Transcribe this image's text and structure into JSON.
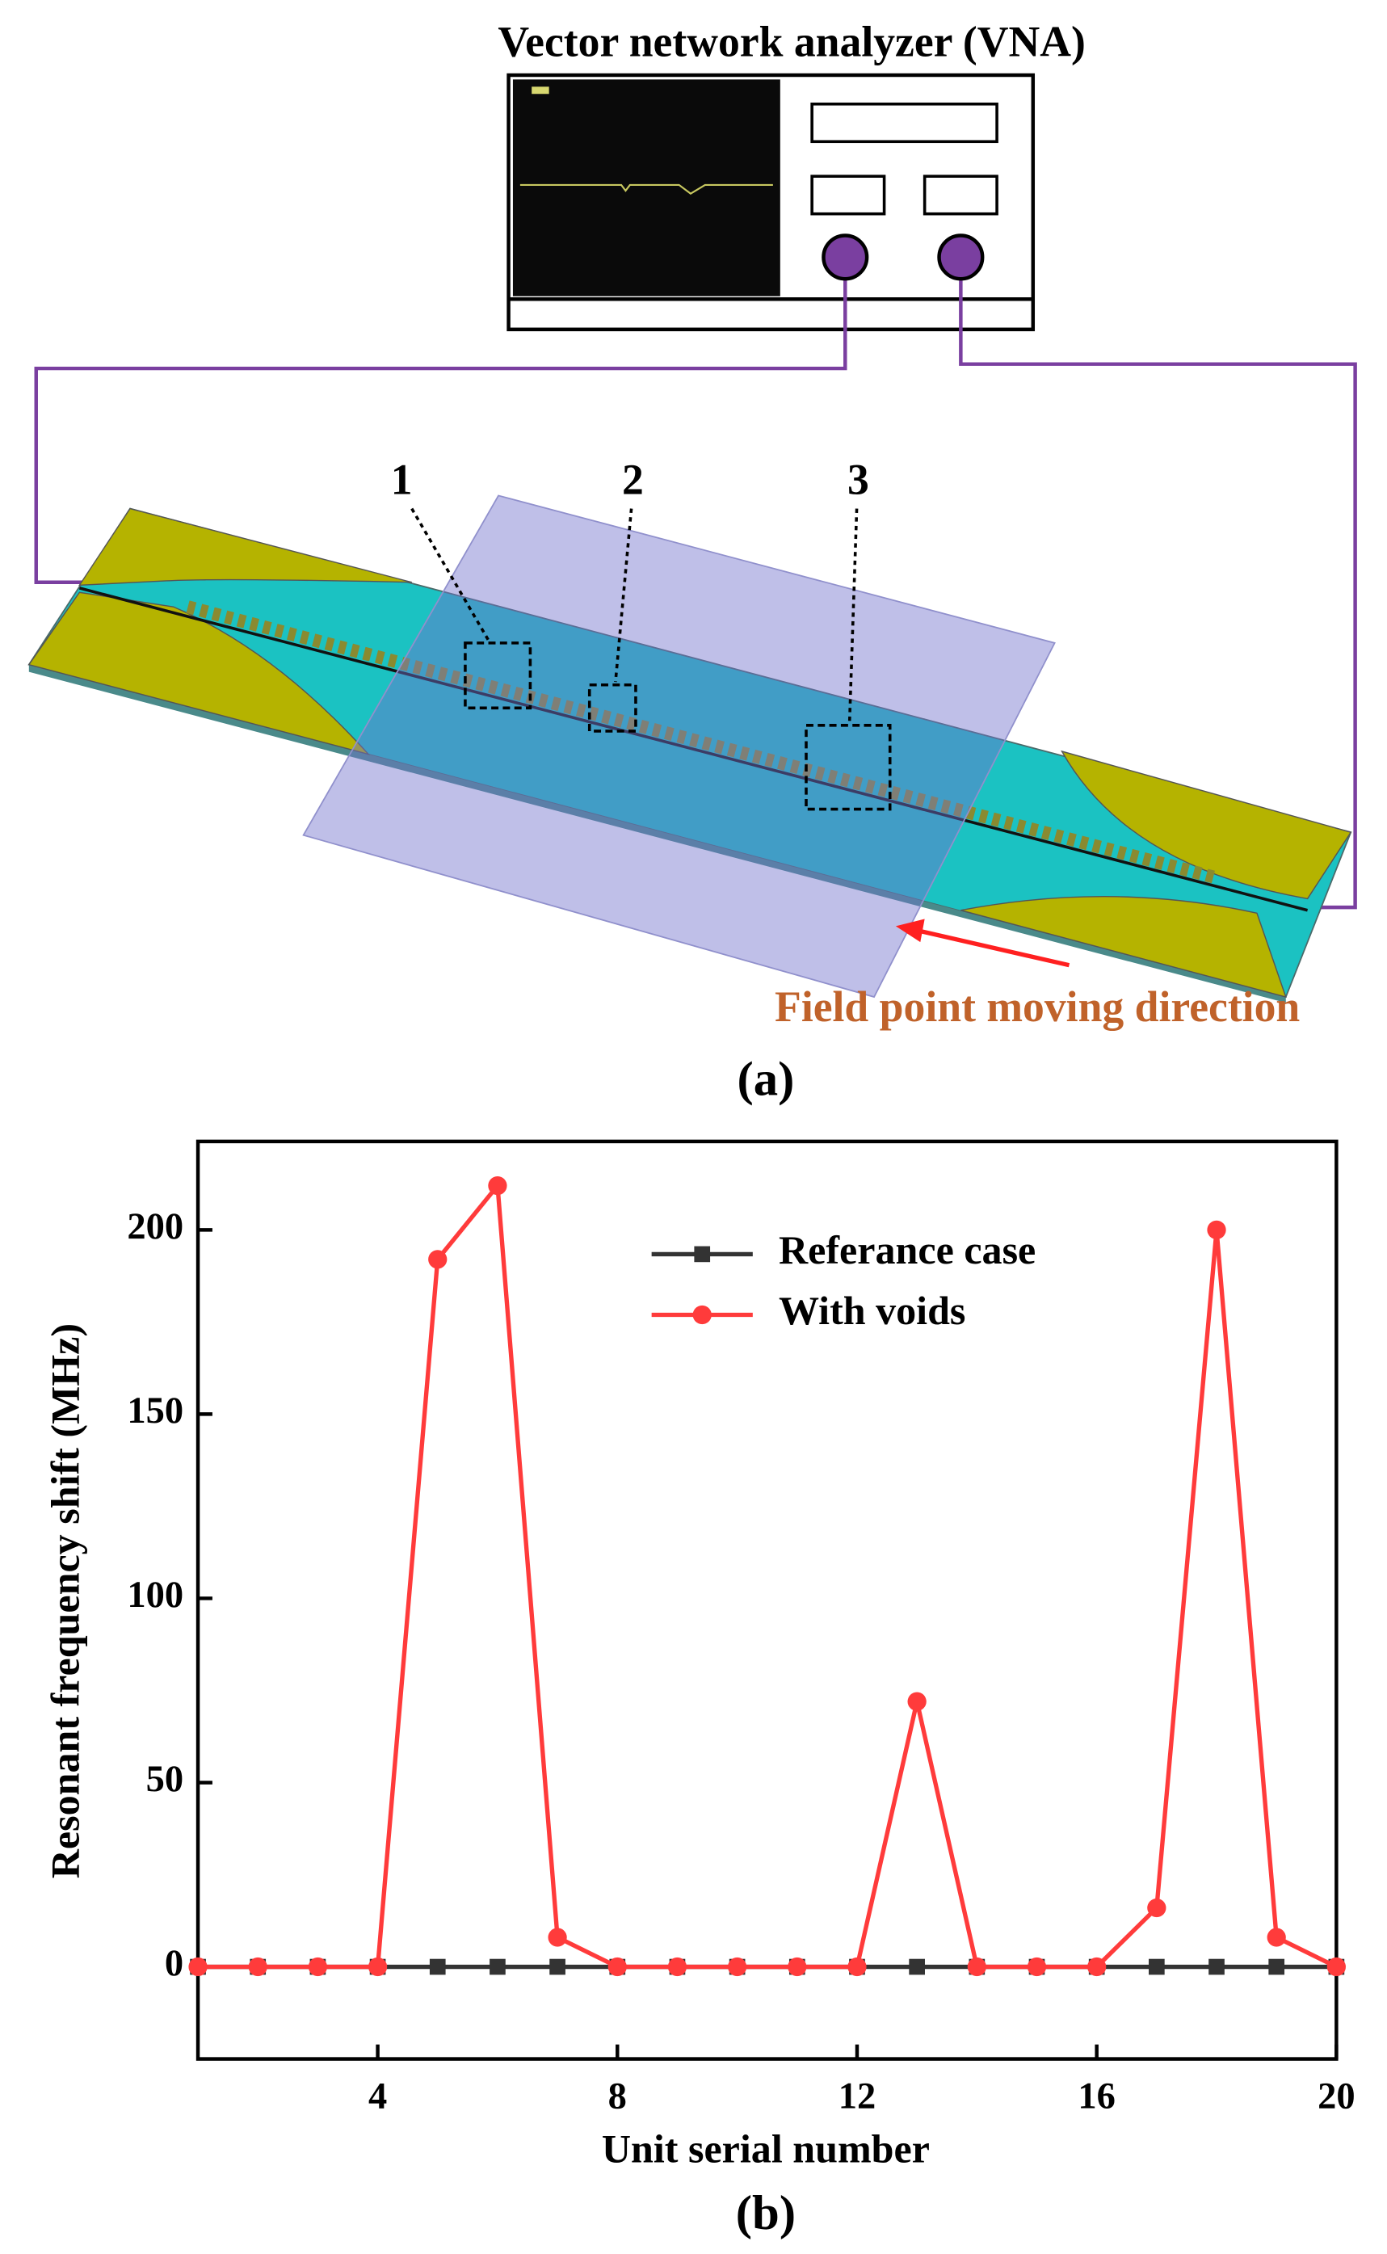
{
  "diagram": {
    "title": "Vector network analyzer (VNA)",
    "markers": [
      "1",
      "2",
      "3"
    ],
    "arrow_label": "Field point moving direction",
    "caption": "(a)"
  },
  "chart_data": {
    "type": "line",
    "xlabel": "Unit serial number",
    "ylabel": "Resonant frequency shift (MHz)",
    "caption": "(b)",
    "x": [
      1,
      2,
      3,
      4,
      5,
      6,
      7,
      8,
      9,
      10,
      11,
      12,
      13,
      14,
      15,
      16,
      17,
      18,
      19,
      20
    ],
    "series": [
      {
        "name": "Referance case",
        "color": "#333333",
        "marker": "square",
        "values": [
          0,
          0,
          0,
          0,
          0,
          0,
          0,
          0,
          0,
          0,
          0,
          0,
          0,
          0,
          0,
          0,
          0,
          0,
          0,
          0
        ]
      },
      {
        "name": "With voids",
        "color": "#ff3b3b",
        "marker": "circle",
        "values": [
          0,
          0,
          0,
          0,
          192,
          212,
          8,
          0,
          0,
          0,
          0,
          0,
          72,
          0,
          0,
          0,
          16,
          200,
          8,
          0
        ]
      }
    ],
    "xlim": [
      1,
      20
    ],
    "xticks": [
      4,
      8,
      12,
      16,
      20
    ],
    "ylim": [
      -25,
      224
    ],
    "yticks": [
      0,
      50,
      100,
      150,
      200
    ],
    "legend": "upper center",
    "grid": false
  }
}
